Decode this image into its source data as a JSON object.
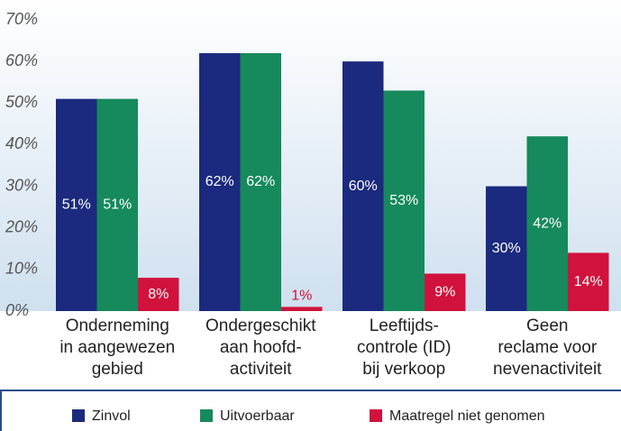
{
  "chart_data": {
    "type": "bar",
    "categories": [
      [
        "Onderneming",
        "in aangewezen",
        "gebied"
      ],
      [
        "Ondergeschikt",
        "aan hoofd-",
        "activiteit"
      ],
      [
        "Leeftijds-",
        "controle (ID)",
        "bij verkoop"
      ],
      [
        "Geen",
        "reclame voor",
        "nevenactiviteit"
      ]
    ],
    "series": [
      {
        "name": "Zinvol",
        "color": "#1b2a7e",
        "values": [
          51,
          62,
          60,
          30
        ],
        "value_labels": [
          "51%",
          "62%",
          "60%",
          "30%"
        ]
      },
      {
        "name": "Uitvoerbaar",
        "color": "#168a5c",
        "values": [
          51,
          62,
          53,
          42
        ],
        "value_labels": [
          "51%",
          "62%",
          "53%",
          "42%"
        ]
      },
      {
        "name": "Maatregel niet genomen",
        "color": "#d0123c",
        "values": [
          8,
          1,
          9,
          14
        ],
        "value_labels": [
          "8%",
          "1%",
          "9%",
          "14%"
        ]
      }
    ],
    "ylim": [
      0,
      70
    ],
    "yticks": [
      {
        "value": 0,
        "label": "0%"
      },
      {
        "value": 10,
        "label": "10%"
      },
      {
        "value": 20,
        "label": "20%"
      },
      {
        "value": 30,
        "label": "30%"
      },
      {
        "value": 40,
        "label": "40%"
      },
      {
        "value": 50,
        "label": "50%"
      },
      {
        "value": 60,
        "label": "60%"
      },
      {
        "value": 70,
        "label": "70%"
      }
    ],
    "legend": "bottom"
  }
}
